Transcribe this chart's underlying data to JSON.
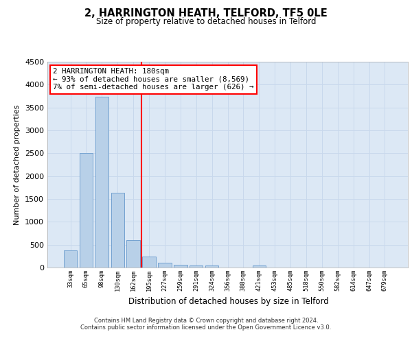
{
  "title_line1": "2, HARRINGTON HEATH, TELFORD, TF5 0LE",
  "title_line2": "Size of property relative to detached houses in Telford",
  "xlabel": "Distribution of detached houses by size in Telford",
  "ylabel": "Number of detached properties",
  "categories": [
    "33sqm",
    "65sqm",
    "98sqm",
    "130sqm",
    "162sqm",
    "195sqm",
    "227sqm",
    "259sqm",
    "291sqm",
    "324sqm",
    "356sqm",
    "388sqm",
    "421sqm",
    "453sqm",
    "485sqm",
    "518sqm",
    "550sqm",
    "582sqm",
    "614sqm",
    "647sqm",
    "679sqm"
  ],
  "values": [
    380,
    2500,
    3730,
    1640,
    600,
    240,
    110,
    60,
    45,
    45,
    0,
    0,
    50,
    0,
    0,
    0,
    0,
    0,
    0,
    0,
    0
  ],
  "bar_color": "#b8d0e8",
  "bar_edgecolor": "#6699cc",
  "vline_x": 4.5,
  "vline_color": "red",
  "annotation_text": "2 HARRINGTON HEATH: 180sqm\n← 93% of detached houses are smaller (8,569)\n7% of semi-detached houses are larger (626) →",
  "annotation_box_color": "white",
  "annotation_box_edgecolor": "red",
  "ylim": [
    0,
    4500
  ],
  "yticks": [
    0,
    500,
    1000,
    1500,
    2000,
    2500,
    3000,
    3500,
    4000,
    4500
  ],
  "footnote_line1": "Contains HM Land Registry data © Crown copyright and database right 2024.",
  "footnote_line2": "Contains public sector information licensed under the Open Government Licence v3.0.",
  "grid_color": "#c8d8ec",
  "bg_color": "#dce8f5"
}
